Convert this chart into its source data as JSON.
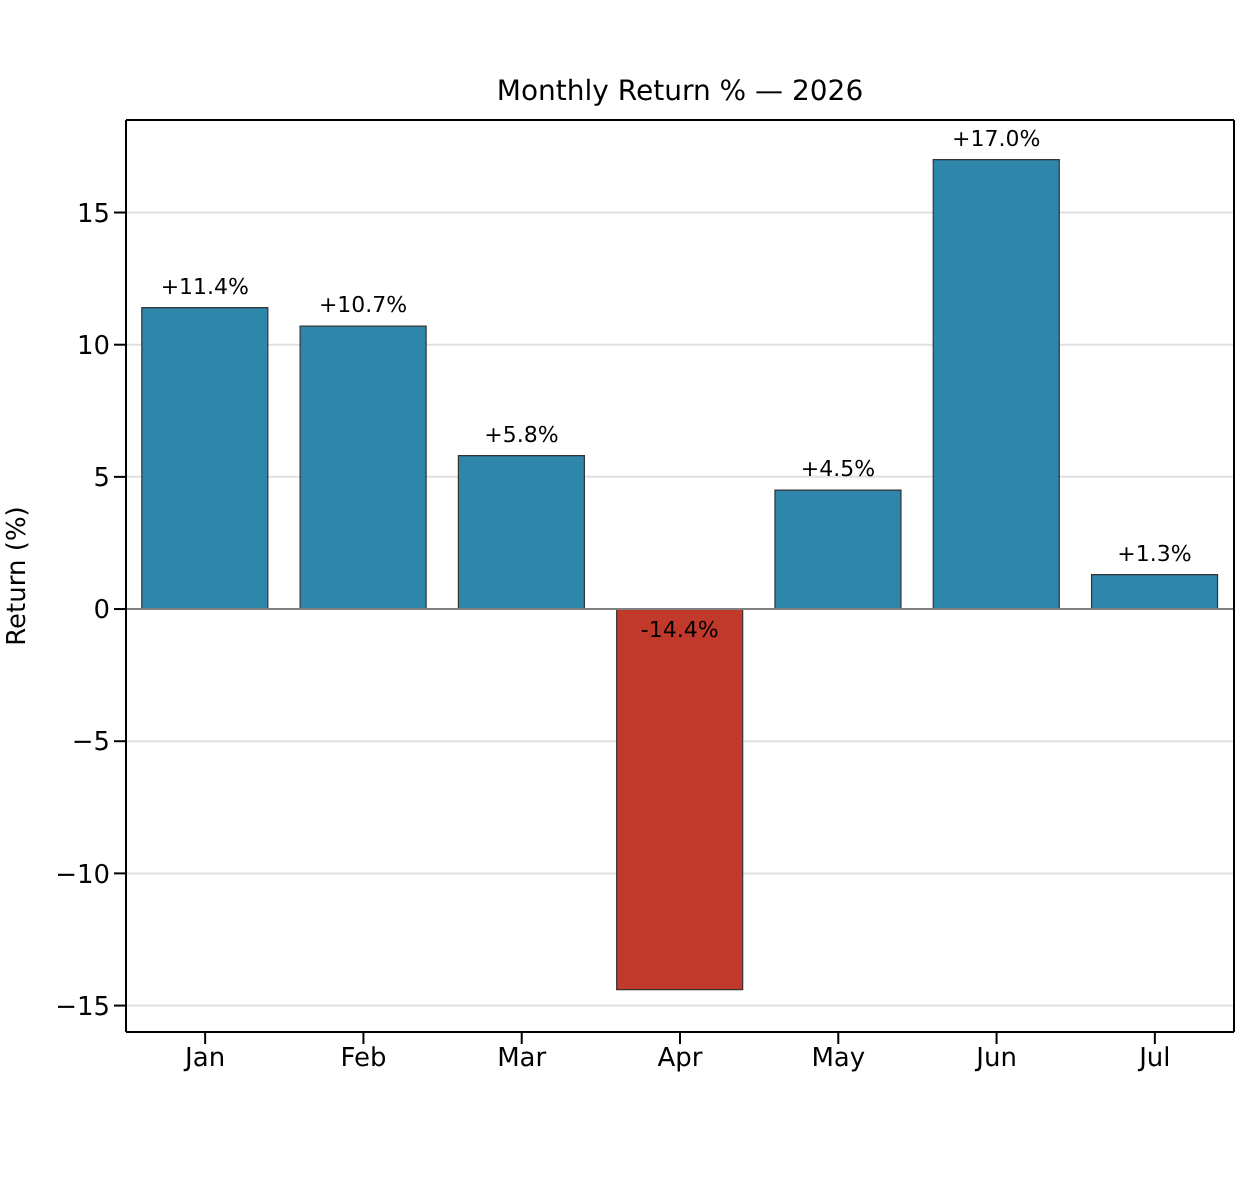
{
  "chart_data": {
    "type": "bar",
    "title": "Monthly Return % — 2026",
    "ylabel": "Return (%)",
    "categories": [
      "Jan",
      "Feb",
      "Mar",
      "Apr",
      "May",
      "Jun",
      "Jul"
    ],
    "values": [
      11.4,
      10.7,
      5.8,
      -14.4,
      4.5,
      17.0,
      1.3
    ],
    "colors": [
      "#2e86ab",
      "#2e86ab",
      "#2e86ab",
      "#c0392b",
      "#2e86ab",
      "#2e86ab",
      "#2e86ab"
    ],
    "value_labels": [
      "+11.4%",
      "+10.7%",
      "+5.8%",
      "-14.4%",
      "+4.5%",
      "+17.0%",
      "+1.3%"
    ],
    "ylim": [
      -16,
      18.5
    ],
    "yticks": [
      {
        "value": -15,
        "label": "−15"
      },
      {
        "value": -10,
        "label": "−10"
      },
      {
        "value": -5,
        "label": "−5"
      },
      0,
      5,
      10,
      15
    ],
    "ref_lines": [
      {
        "axis": "y",
        "value": 0,
        "color": "#808080"
      }
    ],
    "grid": "y"
  }
}
